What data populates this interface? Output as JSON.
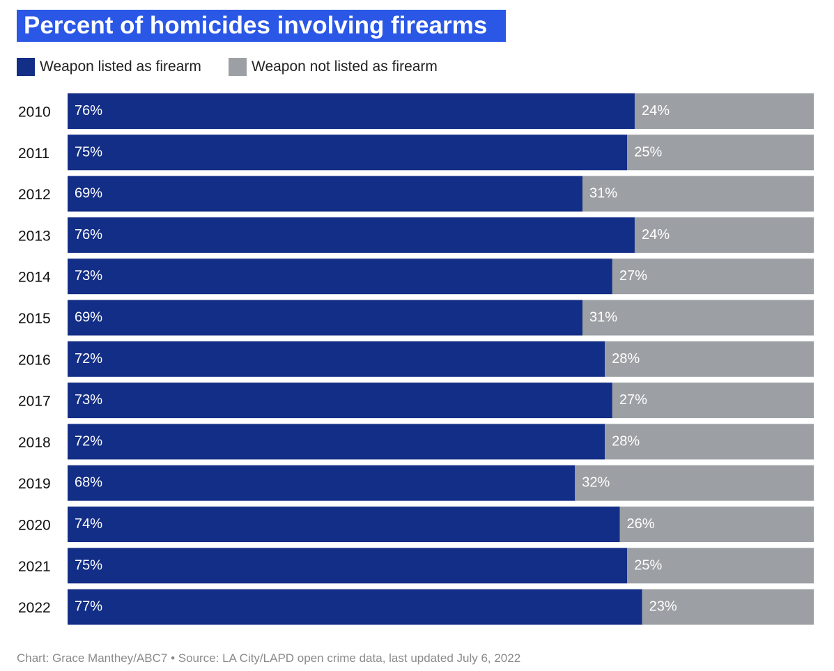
{
  "title": "Percent of homicides involving firearms",
  "legend": {
    "firearm_label": "Weapon listed as firearm",
    "not_firearm_label": "Weapon not listed as firearm"
  },
  "colors": {
    "title_bg": "#2a57e6",
    "firearm": "#132e86",
    "not_firearm": "#9ca0a4"
  },
  "chart_data": {
    "type": "bar",
    "orientation": "horizontal",
    "stacked": true,
    "normalized_to_percent": true,
    "categories": [
      "2010",
      "2011",
      "2012",
      "2013",
      "2014",
      "2015",
      "2016",
      "2017",
      "2018",
      "2019",
      "2020",
      "2021",
      "2022"
    ],
    "series": [
      {
        "name": "Weapon listed as firearm",
        "values": [
          76,
          75,
          69,
          76,
          73,
          69,
          72,
          73,
          72,
          68,
          74,
          75,
          77
        ],
        "labels": [
          "76%",
          "75%",
          "69%",
          "76%",
          "73%",
          "69%",
          "72%",
          "73%",
          "72%",
          "68%",
          "74%",
          "75%",
          "77%"
        ]
      },
      {
        "name": "Weapon not listed as firearm",
        "values": [
          24,
          25,
          31,
          24,
          27,
          31,
          28,
          27,
          28,
          32,
          26,
          25,
          23
        ],
        "labels": [
          "24%",
          "25%",
          "31%",
          "24%",
          "27%",
          "31%",
          "28%",
          "27%",
          "28%",
          "32%",
          "26%",
          "25%",
          "23%"
        ]
      }
    ],
    "xlim": [
      0,
      100
    ],
    "grid": false,
    "legend_position": "top-left"
  },
  "footer": "Chart: Grace Manthey/ABC7 • Source: LA City/LAPD open crime data, last updated July 6, 2022"
}
